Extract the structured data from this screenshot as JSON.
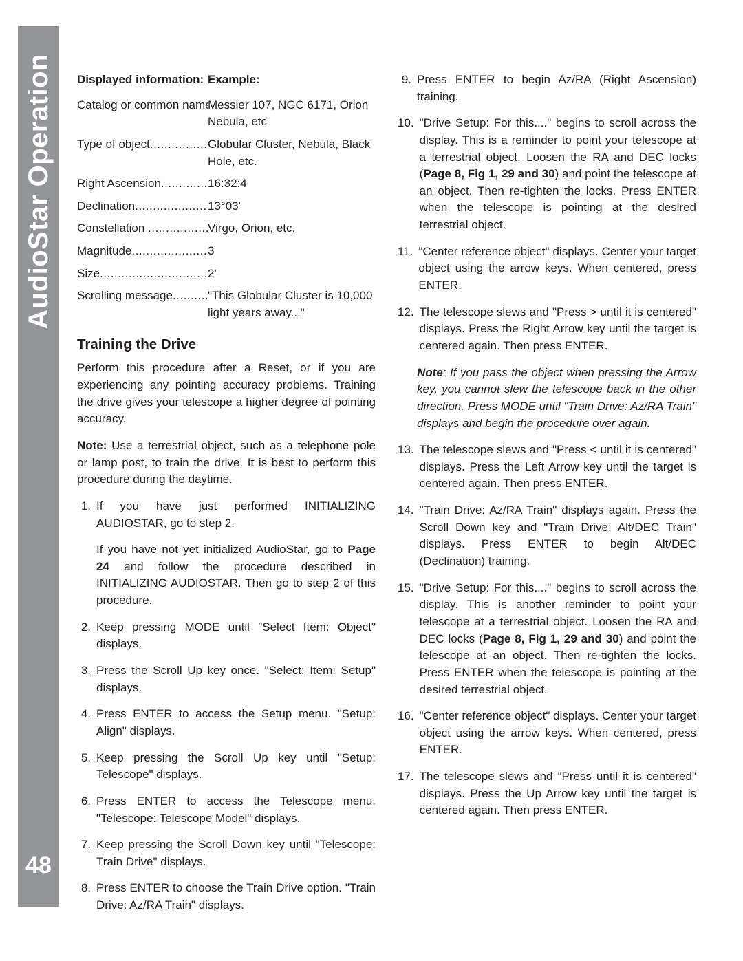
{
  "page": {
    "sidebar_title": "AudioStar Operation",
    "page_number": "48",
    "colors": {
      "sidebar_bg": "#939598",
      "sidebar_text": "#ffffff",
      "body_text": "#231f20",
      "background": "#ffffff"
    }
  },
  "info_table": {
    "header_left": "Displayed information:",
    "header_right": "Example:",
    "rows": [
      {
        "label": "Catalog or common name",
        "dots": "...",
        "value": "Messier 107, NGC 6171, Orion Nebula, etc"
      },
      {
        "label": "Type of object",
        "dots": ".....................",
        "value": "Globular Cluster, Nebula, Black Hole, etc."
      },
      {
        "label": "Right Ascension",
        "dots": "..................",
        "value": "16:32:4"
      },
      {
        "label": "Declination",
        "dots": "..........................",
        "value": "13°03'"
      },
      {
        "label": "Constellation ",
        "dots": "......................",
        "value": "Virgo, Orion, etc."
      },
      {
        "label": "Magnitude",
        "dots": "...........................",
        "value": "3"
      },
      {
        "label": "Size",
        "dots": ".....................................",
        "value": "2'"
      },
      {
        "label": "Scrolling message",
        "dots": "...............",
        "value": "\"This Globular Cluster is 10,000 light years away...\""
      }
    ]
  },
  "section": {
    "heading": "Training the Drive",
    "intro": "Perform this procedure after a Reset, or if you are experiencing any pointing accuracy problems. Training the drive gives your telescope a higher degree of pointing accuracy.",
    "note_label": "Note:",
    "note_body": " Use a terrestrial object, such as a telephone pole or lamp post, to train the drive. It is best to perform this procedure during the daytime.",
    "steps_left": [
      {
        "n": "1.",
        "text_a": "If you have just performed INITIALIZING AUDIOSTAR, go to step 2.",
        "sub_a": "If you have not yet initialized AudioStar, go to ",
        "sub_bold": "Page 24",
        "sub_b": " and follow the procedure described in INITIALIZING AUDIOSTAR. Then go to step 2 of this procedure."
      },
      {
        "n": "2.",
        "text_a": "Keep pressing MODE until \"Select Item: Object\" displays."
      },
      {
        "n": "3.",
        "text_a": "Press the Scroll Up key once. \"Select: Item: Setup\" displays."
      },
      {
        "n": "4.",
        "text_a": "Press ENTER to access the Setup menu. \"Setup: Align\" displays."
      },
      {
        "n": "5.",
        "text_a": "Keep pressing the Scroll Up key until \"Setup: Telescope\" displays."
      },
      {
        "n": "6.",
        "text_a": "Press ENTER to access the Telescope menu. \"Telescope: Telescope Model\" displays."
      },
      {
        "n": "7.",
        "text_a": "Keep pressing the Scroll Down key until \"Telescope: Train Drive\" displays."
      },
      {
        "n": "8.",
        "text_a": "Press ENTER to choose the Train Drive option. \"Train Drive: Az/RA Train\" displays."
      }
    ],
    "steps_right": [
      {
        "n": "9.",
        "text_a": "Press ENTER to begin Az/RA (Right Ascension) training."
      },
      {
        "n": "10.",
        "text_a": "\"Drive Setup: For this....\" begins to scroll across the display. This is a reminder to point your telescope at a terrestrial object. Loosen the RA and DEC locks (",
        "bold1": "Page 8, Fig 1, 29 and 30",
        "text_b": ") and point the telescope at an object. Then re-tighten the locks. Press ENTER when the telescope is pointing at the desired terrestrial object."
      },
      {
        "n": "11.",
        "text_a": "\"Center reference object\" displays. Center your target object using the arrow keys. When centered, press ENTER."
      },
      {
        "n": "12.",
        "text_a": "The telescope slews and \"Press > until it is centered\" displays. Press the Right Arrow key until the target is centered again. Then press ENTER."
      }
    ],
    "mid_note_bold": "Note",
    "mid_note": ": If you pass the object when pressing the Arrow key, you cannot slew the telescope back in the other direction. Press MODE until \"Train Drive: Az/RA Train\" displays and begin the procedure over again.",
    "steps_right2": [
      {
        "n": "13.",
        "text_a": "The telescope slews and \"Press < until it is centered\" displays. Press the Left Arrow key until the target is centered again. Then press ENTER."
      },
      {
        "n": "14.",
        "text_a": "\"Train Drive: Az/RA Train\" displays again. Press the Scroll Down key and \"Train Drive: Alt/DEC Train\" displays. Press ENTER to begin Alt/DEC (Declination) training."
      },
      {
        "n": "15.",
        "text_a": "\"Drive Setup: For this....\" begins to scroll across the display. This is another reminder to point your telescope at a terrestrial object. Loosen the RA and DEC locks (",
        "bold1": "Page 8, Fig 1, 29 and 30",
        "text_b": ") and point the telescope at an object. Then re-tighten the locks. Press ENTER when the telescope is pointing at the desired terrestrial object."
      },
      {
        "n": "16.",
        "text_a": "\"Center reference object\" displays. Center your target object using the arrow keys. When centered, press ENTER."
      },
      {
        "n": "17.",
        "text_a": "The telescope slews and \"Press  until it is centered\" displays. Press the Up Arrow key until the target is centered again. Then press ENTER."
      }
    ]
  }
}
